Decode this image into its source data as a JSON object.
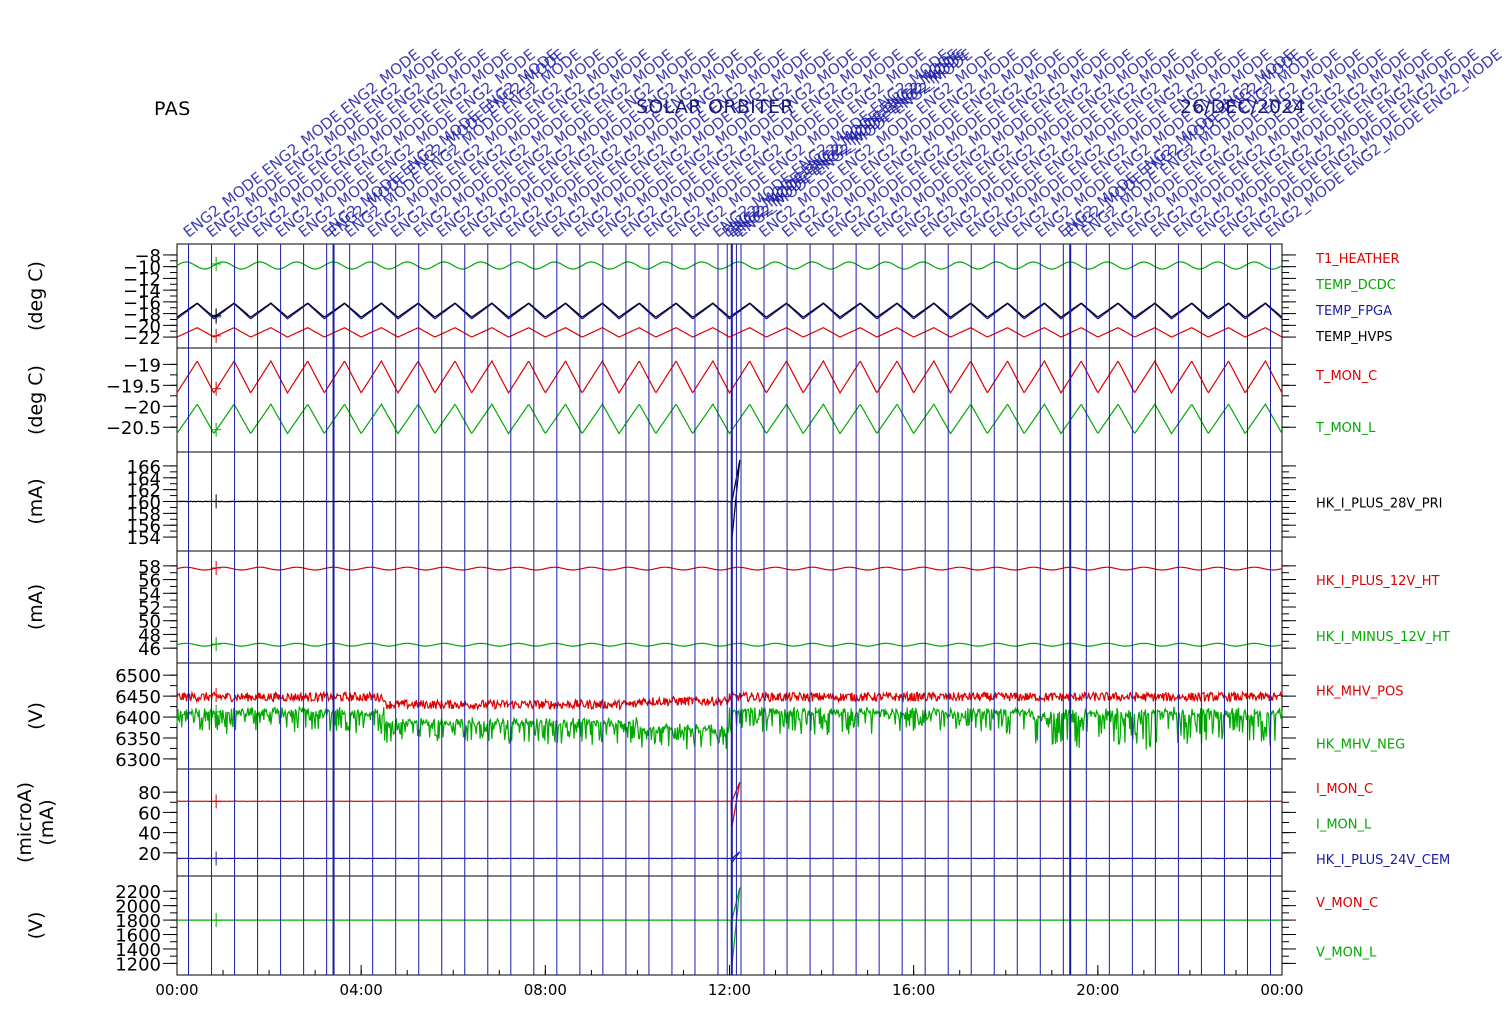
{
  "header": {
    "label": "PAS",
    "title": "SOLAR ORBITER",
    "date": "26/DEC/2024"
  },
  "colors": {
    "red": "#dd0000",
    "green": "#00aa00",
    "blue": "#1a1aa8",
    "black": "#000000"
  },
  "annotation_label": "ENG2_MODE",
  "chart_data": {
    "type": "line",
    "x_axis": {
      "range_hours": [
        0,
        24
      ],
      "tick_labels": [
        "00:00",
        "04:00",
        "08:00",
        "12:00",
        "16:00",
        "20:00",
        "00:00"
      ]
    },
    "panels": [
      {
        "ylabel": "(deg C)",
        "ylim": [
          -22.5,
          -7.5
        ],
        "ticks": [
          -8,
          -10,
          -12,
          -14,
          -16,
          -18,
          -20,
          -22
        ],
        "series": [
          {
            "name": "T1_HEATHER",
            "color": "red",
            "mean": -21.2,
            "amp": 0.8,
            "periods": 30,
            "shape": "saw"
          },
          {
            "name": "TEMP_DCDC",
            "color": "green",
            "mean": -9.8,
            "amp": 0.6,
            "periods": 30,
            "shape": "sine"
          },
          {
            "name": "TEMP_FPGA",
            "color": "blue",
            "mean": -17.6,
            "amp": 1.3,
            "periods": 30,
            "shape": "saw"
          },
          {
            "name": "TEMP_HVPS",
            "color": "black",
            "mean": -17.4,
            "amp": 1.2,
            "periods": 30,
            "shape": "saw"
          }
        ]
      },
      {
        "ylabel": "(deg C)",
        "ylim": [
          -20.9,
          -18.8
        ],
        "ticks": [
          -19.0,
          -19.5,
          -20.0,
          -20.5
        ],
        "series": [
          {
            "name": "T_MON_C",
            "color": "red",
            "mean": -19.3,
            "amp": 0.38,
            "periods": 30,
            "shape": "saw"
          },
          {
            "name": "T_MON_L",
            "color": "green",
            "mean": -20.3,
            "amp": 0.35,
            "periods": 30,
            "shape": "saw"
          }
        ]
      },
      {
        "ylabel": "(mA)",
        "ylim": [
          153,
          167
        ],
        "ticks": [
          154,
          156,
          158,
          160,
          162,
          164,
          166
        ],
        "series": [
          {
            "name": "HK_I_PLUS_28V_PRI",
            "color": "black",
            "mean": 160,
            "amp": 0.1,
            "periods": 0,
            "shape": "flat",
            "spike": [
              153.5,
              167
            ]
          }
        ]
      },
      {
        "ylabel": "(mA)",
        "ylim": [
          45,
          59
        ],
        "ticks": [
          46,
          48,
          50,
          52,
          54,
          56,
          58
        ],
        "series": [
          {
            "name": "HK_I_PLUS_12V_HT",
            "color": "red",
            "mean": 57.6,
            "amp": 0.2,
            "periods": 30,
            "shape": "sine"
          },
          {
            "name": "HK_I_MINUS_12V_HT",
            "color": "green",
            "mean": 46.5,
            "amp": 0.2,
            "periods": 30,
            "shape": "sine"
          }
        ]
      },
      {
        "ylabel": "(V)",
        "ylim": [
          6295,
          6510
        ],
        "ticks": [
          6300,
          6350,
          6400,
          6450,
          6500
        ],
        "series": [
          {
            "name": "HK_MHV_POS",
            "color": "red",
            "mean": 6445,
            "amp": 0,
            "periods": 0,
            "shape": "noisy"
          },
          {
            "name": "HK_MHV_NEG",
            "color": "green",
            "mean": 6415,
            "amp": 0,
            "periods": 0,
            "shape": "noisy"
          }
        ]
      },
      {
        "ylabel": "(microA)\n(mA)",
        "ylim": [
          5,
          95
        ],
        "ticks": [
          20,
          40,
          60,
          80
        ],
        "series": [
          {
            "name": "I_MON_C",
            "color": "red",
            "mean": 71,
            "amp": 0.3,
            "periods": 0,
            "shape": "flat",
            "spike": [
              45,
              90
            ]
          },
          {
            "name": "I_MON_L",
            "color": "green",
            "mean": null,
            "amp": 0,
            "periods": 0,
            "shape": "none"
          },
          {
            "name": "HK_I_PLUS_24V_CEM",
            "color": "blue",
            "mean": 14.5,
            "amp": 0.3,
            "periods": 0,
            "shape": "flat",
            "spike": [
              10,
              21
            ]
          }
        ]
      },
      {
        "ylabel": "(V)",
        "ylim": [
          1150,
          2300
        ],
        "ticks": [
          1200,
          1400,
          1600,
          1800,
          2000,
          2200
        ],
        "series": [
          {
            "name": "V_MON_C",
            "color": "red",
            "mean": null,
            "amp": 0,
            "periods": 0,
            "shape": "none"
          },
          {
            "name": "V_MON_L",
            "color": "green",
            "mean": 1800,
            "amp": 0,
            "periods": 0,
            "shape": "flat",
            "spike": [
              1150,
              2250
            ]
          }
        ]
      }
    ]
  }
}
